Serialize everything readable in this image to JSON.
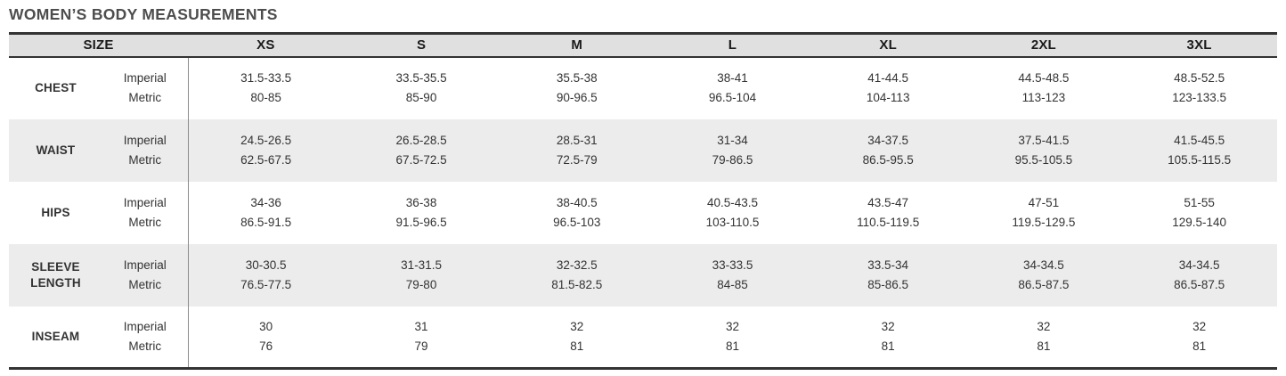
{
  "title": "WOMEN’S BODY MEASUREMENTS",
  "chart_data": {
    "type": "table",
    "size_header": "SIZE",
    "sizes": [
      "XS",
      "S",
      "M",
      "L",
      "XL",
      "2XL",
      "3XL"
    ],
    "unit_labels": [
      "Imperial",
      "Metric"
    ],
    "rows": [
      {
        "label": "CHEST",
        "imperial": [
          "31.5-33.5",
          "33.5-35.5",
          "35.5-38",
          "38-41",
          "41-44.5",
          "44.5-48.5",
          "48.5-52.5"
        ],
        "metric": [
          "80-85",
          "85-90",
          "90-96.5",
          "96.5-104",
          "104-113",
          "113-123",
          "123-133.5"
        ]
      },
      {
        "label": "WAIST",
        "imperial": [
          "24.5-26.5",
          "26.5-28.5",
          "28.5-31",
          "31-34",
          "34-37.5",
          "37.5-41.5",
          "41.5-45.5"
        ],
        "metric": [
          "62.5-67.5",
          "67.5-72.5",
          "72.5-79",
          "79-86.5",
          "86.5-95.5",
          "95.5-105.5",
          "105.5-115.5"
        ]
      },
      {
        "label": "HIPS",
        "imperial": [
          "34-36",
          "36-38",
          "38-40.5",
          "40.5-43.5",
          "43.5-47",
          "47-51",
          "51-55"
        ],
        "metric": [
          "86.5-91.5",
          "91.5-96.5",
          "96.5-103",
          "103-110.5",
          "110.5-119.5",
          "119.5-129.5",
          "129.5-140"
        ]
      },
      {
        "label": "SLEEVE LENGTH",
        "imperial": [
          "30-30.5",
          "31-31.5",
          "32-32.5",
          "33-33.5",
          "33.5-34",
          "34-34.5",
          "34-34.5"
        ],
        "metric": [
          "76.5-77.5",
          "79-80",
          "81.5-82.5",
          "84-85",
          "85-86.5",
          "86.5-87.5",
          "86.5-87.5"
        ]
      },
      {
        "label": "INSEAM",
        "imperial": [
          "30",
          "31",
          "32",
          "32",
          "32",
          "32",
          "32"
        ],
        "metric": [
          "76",
          "79",
          "81",
          "81",
          "81",
          "81",
          "81"
        ]
      }
    ]
  },
  "colors": {
    "title_text": "#4d4d4d",
    "header_bg": "#e0e0e0",
    "stripe_bg": "#ececec",
    "border_dark": "#333333",
    "divider_gray": "#8c8c8c",
    "cell_text": "#333333",
    "header_text": "#1a1a1a"
  }
}
